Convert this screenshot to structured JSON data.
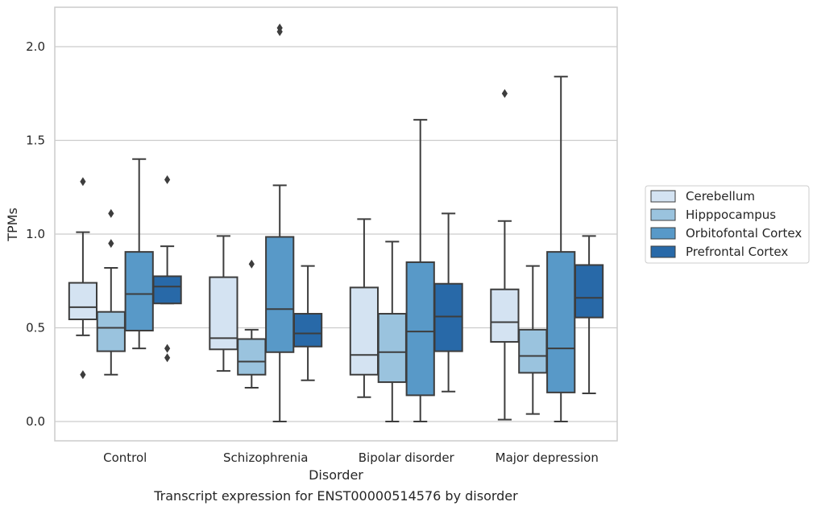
{
  "chart_data": {
    "type": "boxplot",
    "title": "",
    "caption": "Transcript expression for ENST00000514576 by disorder",
    "xlabel": "Disorder",
    "ylabel": "TPMs",
    "ylim": [
      -0.1,
      2.22
    ],
    "yticks": [
      "0.0",
      "0.5",
      "1.0",
      "1.5",
      "2.0"
    ],
    "ytick_values": [
      0.0,
      0.5,
      1.0,
      1.5,
      2.0
    ],
    "grid": "horizontal",
    "legend_position": "right",
    "categories": [
      "Control",
      "Schizophrenia",
      "Bipolar disorder",
      "Major depression"
    ],
    "series": [
      {
        "name": "Cerebellum",
        "color": "#d4e3f2",
        "boxes": [
          {
            "whislo": 0.46,
            "q1": 0.545,
            "med": 0.61,
            "q3": 0.74,
            "whishi": 1.01,
            "fliers": [
              1.28,
              0.25
            ]
          },
          {
            "whislo": 0.27,
            "q1": 0.385,
            "med": 0.445,
            "q3": 0.77,
            "whishi": 0.99,
            "fliers": []
          },
          {
            "whislo": 0.13,
            "q1": 0.25,
            "med": 0.355,
            "q3": 0.715,
            "whishi": 1.08,
            "fliers": []
          },
          {
            "whislo": 0.01,
            "q1": 0.425,
            "med": 0.53,
            "q3": 0.705,
            "whishi": 1.07,
            "fliers": [
              1.75
            ]
          }
        ]
      },
      {
        "name": "Hipppocampus",
        "color": "#9ac3de",
        "boxes": [
          {
            "whislo": 0.25,
            "q1": 0.375,
            "med": 0.5,
            "q3": 0.585,
            "whishi": 0.82,
            "fliers": [
              1.11,
              0.95
            ]
          },
          {
            "whislo": 0.18,
            "q1": 0.25,
            "med": 0.32,
            "q3": 0.44,
            "whishi": 0.49,
            "fliers": [
              0.84
            ]
          },
          {
            "whislo": 0.0,
            "q1": 0.21,
            "med": 0.37,
            "q3": 0.575,
            "whishi": 0.96,
            "fliers": []
          },
          {
            "whislo": 0.04,
            "q1": 0.26,
            "med": 0.35,
            "q3": 0.49,
            "whishi": 0.83,
            "fliers": []
          }
        ]
      },
      {
        "name": "Orbitofontal Cortex",
        "color": "#5899c8",
        "boxes": [
          {
            "whislo": 0.39,
            "q1": 0.485,
            "med": 0.68,
            "q3": 0.905,
            "whishi": 1.4,
            "fliers": []
          },
          {
            "whislo": 0.0,
            "q1": 0.37,
            "med": 0.6,
            "q3": 0.985,
            "whishi": 1.26,
            "fliers": [
              2.1,
              2.08
            ]
          },
          {
            "whislo": 0.0,
            "q1": 0.14,
            "med": 0.48,
            "q3": 0.85,
            "whishi": 1.61,
            "fliers": []
          },
          {
            "whislo": 0.0,
            "q1": 0.155,
            "med": 0.39,
            "q3": 0.905,
            "whishi": 1.84,
            "fliers": []
          }
        ]
      },
      {
        "name": "Prefrontal Cortex",
        "color": "#2869a8",
        "boxes": [
          {
            "whislo": 0.63,
            "q1": 0.63,
            "med": 0.72,
            "q3": 0.775,
            "whishi": 0.935,
            "fliers": [
              1.29,
              0.39,
              0.34
            ]
          },
          {
            "whislo": 0.22,
            "q1": 0.4,
            "med": 0.47,
            "q3": 0.575,
            "whishi": 0.83,
            "fliers": []
          },
          {
            "whislo": 0.16,
            "q1": 0.375,
            "med": 0.56,
            "q3": 0.735,
            "whishi": 1.11,
            "fliers": []
          },
          {
            "whislo": 0.15,
            "q1": 0.555,
            "med": 0.66,
            "q3": 0.835,
            "whishi": 0.99,
            "fliers": []
          }
        ]
      }
    ]
  }
}
